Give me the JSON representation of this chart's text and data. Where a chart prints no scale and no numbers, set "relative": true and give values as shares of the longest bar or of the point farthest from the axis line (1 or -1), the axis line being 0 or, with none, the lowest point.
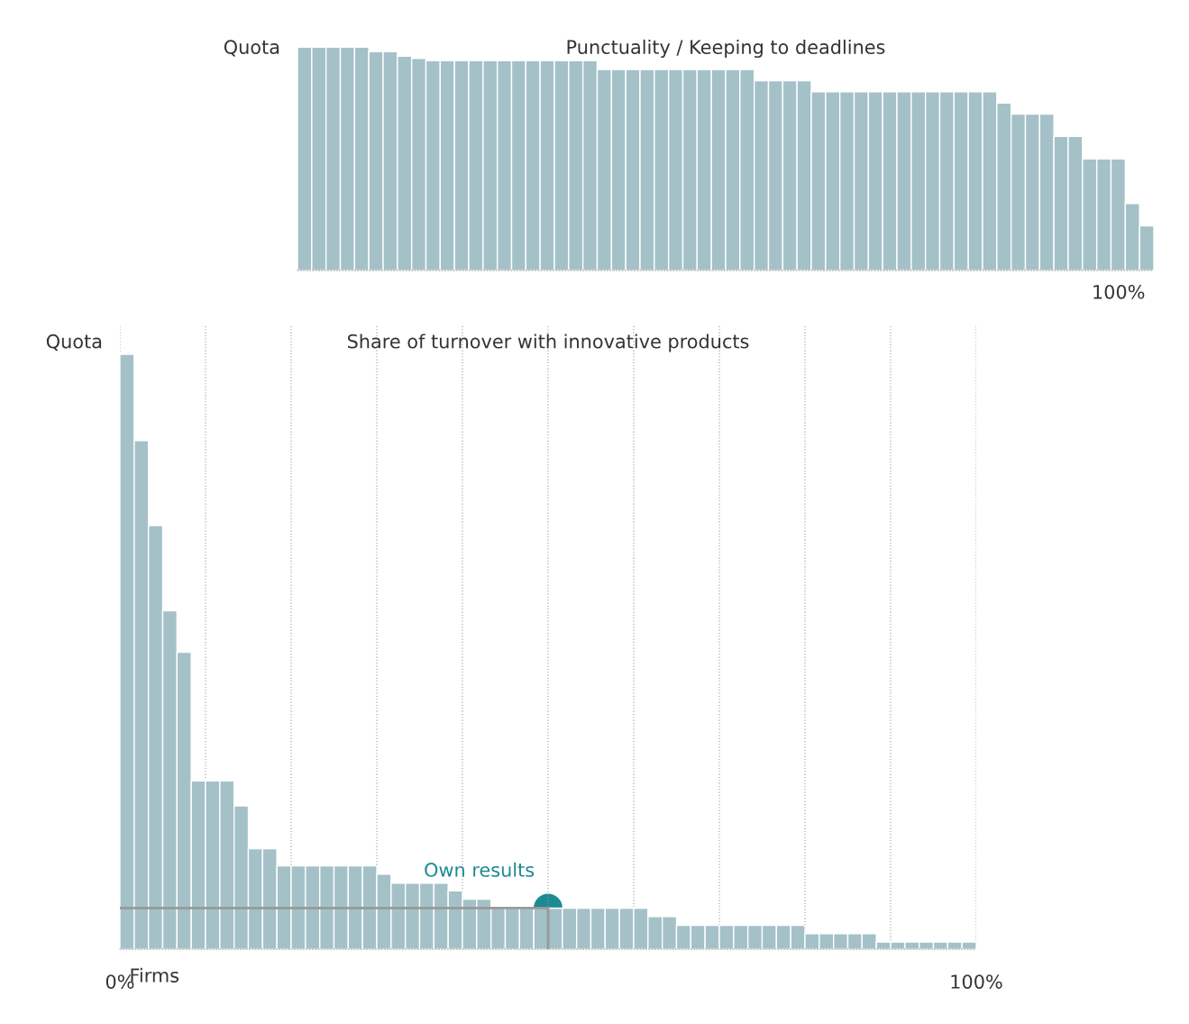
{
  "chart_data": [
    {
      "type": "bar",
      "title": "Punctuality / Keeping to deadlines",
      "ylabel": "Quota",
      "relative": true,
      "annotations": [
        "100%"
      ],
      "categories": [
        null,
        null,
        null,
        null,
        null,
        null,
        null,
        null,
        null,
        null,
        null,
        null,
        null,
        null,
        null,
        null,
        null,
        null,
        null,
        null,
        null,
        null,
        null,
        null,
        null,
        null,
        null,
        null,
        null,
        null,
        null,
        null,
        null,
        null,
        null,
        null,
        null,
        null,
        null,
        null,
        null,
        null,
        null,
        null,
        null,
        null,
        null,
        null,
        null,
        null,
        null,
        null,
        null,
        null,
        null,
        null,
        null,
        null,
        null,
        null
      ],
      "series": [
        {
          "color": "#a4c1c8",
          "values": [
            1.0,
            1.0,
            1.0,
            1.0,
            1.0,
            0.98,
            0.98,
            0.96,
            0.95,
            0.94,
            0.94,
            0.94,
            0.94,
            0.94,
            0.94,
            0.94,
            0.94,
            0.94,
            0.94,
            0.94,
            0.94,
            0.9,
            0.9,
            0.9,
            0.9,
            0.9,
            0.9,
            0.9,
            0.9,
            0.9,
            0.9,
            0.9,
            0.85,
            0.85,
            0.85,
            0.85,
            0.8,
            0.8,
            0.8,
            0.8,
            0.8,
            0.8,
            0.8,
            0.8,
            0.8,
            0.8,
            0.8,
            0.8,
            0.8,
            0.75,
            0.7,
            0.7,
            0.7,
            0.6,
            0.6,
            0.5,
            0.5,
            0.5,
            0.3,
            0.2
          ]
        }
      ]
    },
    {
      "type": "bar",
      "title": "Share of turnover with innovative products",
      "ylabel": "Quota",
      "xlabel": "Firms",
      "relative": true,
      "grid": "x",
      "xlim": [
        0,
        100
      ],
      "xticks": [
        {
          "value": 0,
          "label": "0%"
        },
        {
          "value": 10,
          "label": null
        },
        {
          "value": 20,
          "label": null
        },
        {
          "value": 30,
          "label": null
        },
        {
          "value": 40,
          "label": null
        },
        {
          "value": 50,
          "label": null
        },
        {
          "value": 60,
          "label": null
        },
        {
          "value": 70,
          "label": null
        },
        {
          "value": 80,
          "label": null
        },
        {
          "value": 90,
          "label": null
        },
        {
          "value": 100,
          "label": "100%"
        }
      ],
      "x": [
        0.83,
        2.5,
        4.17,
        5.83,
        7.5,
        9.17,
        10.83,
        12.5,
        14.17,
        15.83,
        17.5,
        19.17,
        20.83,
        22.5,
        24.17,
        25.83,
        27.5,
        29.17,
        30.83,
        32.5,
        34.17,
        35.83,
        37.5,
        39.17,
        40.83,
        42.5,
        44.17,
        45.83,
        47.5,
        49.17,
        50.83,
        52.5,
        54.17,
        55.83,
        57.5,
        59.17,
        60.83,
        62.5,
        64.17,
        65.83,
        67.5,
        69.17,
        70.83,
        72.5,
        74.17,
        75.83,
        77.5,
        79.17,
        80.83,
        82.5,
        84.17,
        85.83,
        87.5,
        89.17,
        90.83,
        92.5,
        94.17,
        95.83,
        97.5,
        99.17
      ],
      "series": [
        {
          "color": "#a4c1c8",
          "values": [
            1.0,
            0.855,
            0.712,
            0.569,
            0.499,
            0.283,
            0.283,
            0.283,
            0.241,
            0.169,
            0.169,
            0.14,
            0.14,
            0.14,
            0.14,
            0.14,
            0.14,
            0.14,
            0.126,
            0.111,
            0.111,
            0.111,
            0.111,
            0.098,
            0.084,
            0.084,
            0.069,
            0.069,
            0.069,
            0.069,
            0.069,
            0.069,
            0.069,
            0.069,
            0.069,
            0.069,
            0.069,
            0.055,
            0.055,
            0.04,
            0.04,
            0.04,
            0.04,
            0.04,
            0.04,
            0.04,
            0.04,
            0.04,
            0.026,
            0.026,
            0.026,
            0.026,
            0.026,
            0.012,
            0.012,
            0.012,
            0.012,
            0.012,
            0.012,
            0.012
          ]
        }
      ],
      "ref_lines": [
        {
          "axis": "y",
          "value": 0.069,
          "color": "#999999"
        }
      ],
      "annotations": [
        {
          "text": "Own results",
          "x": 50,
          "y": 0.069
        }
      ]
    }
  ]
}
